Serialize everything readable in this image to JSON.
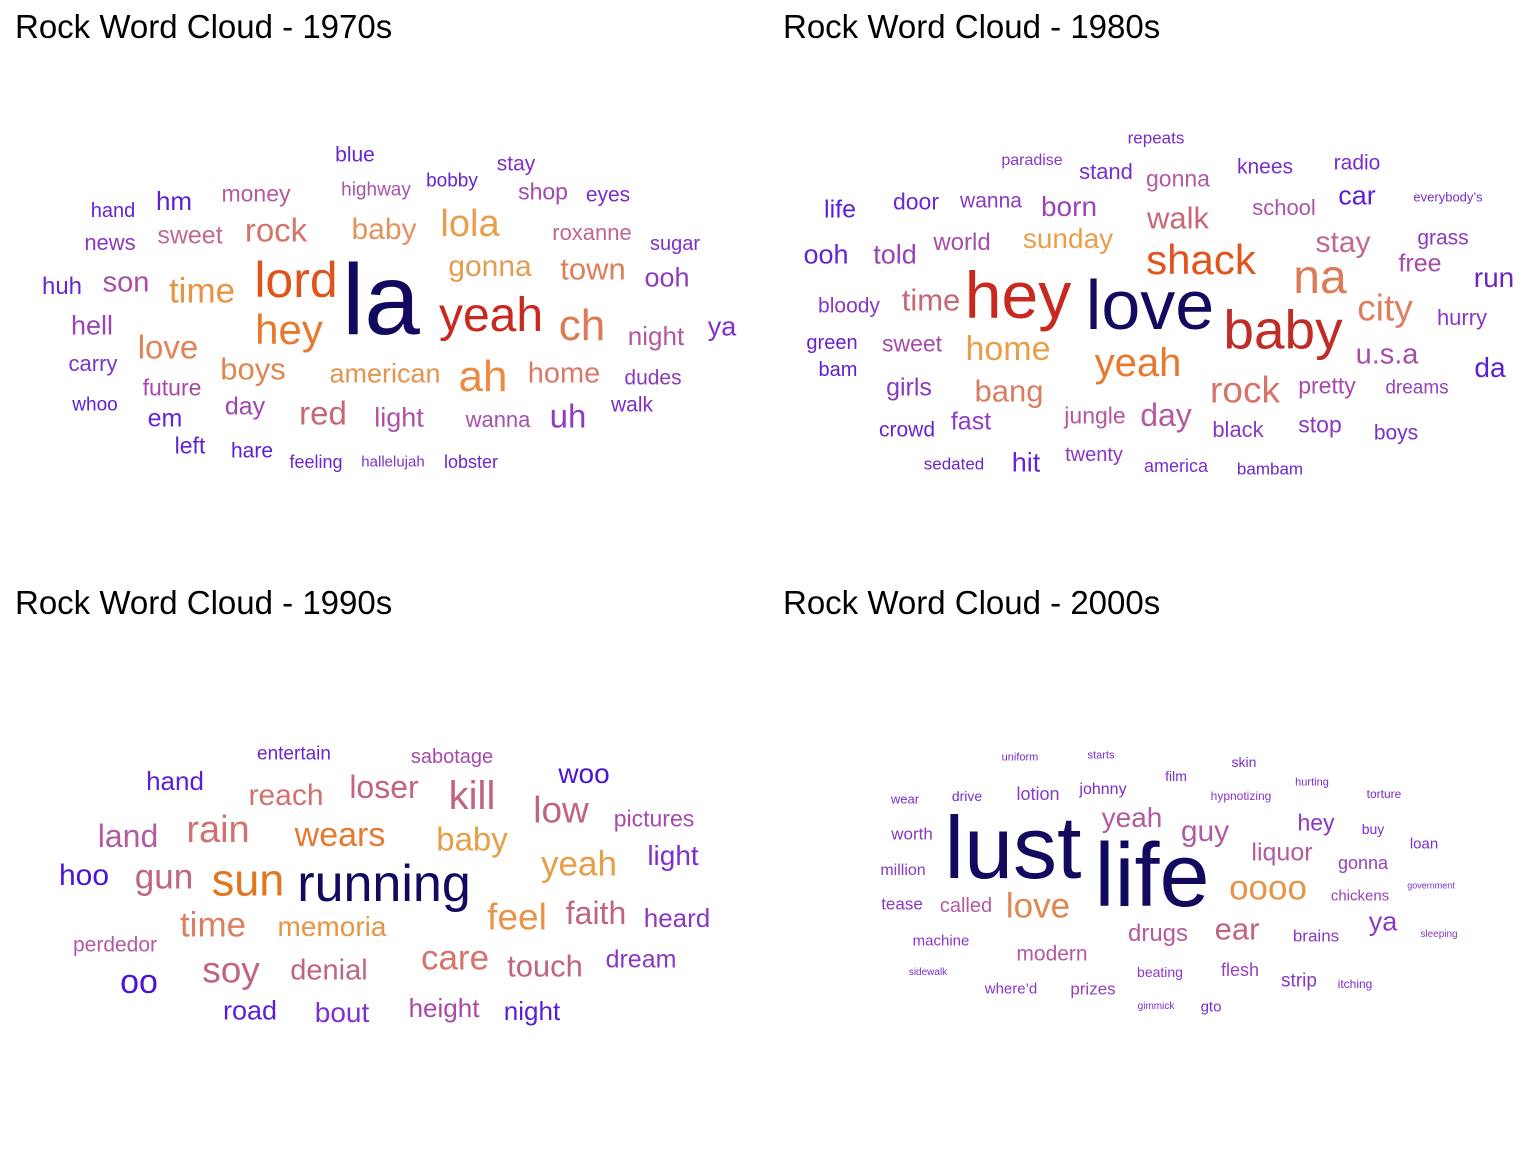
{
  "chart_data": [
    {
      "type": "wordcloud",
      "title": "Rock Word Cloud - 1970s",
      "words": [
        {
          "text": "la",
          "weight": 100,
          "color": "#120a5e"
        },
        {
          "text": "lord",
          "weight": 50,
          "color": "#e0541b"
        },
        {
          "text": "yeah",
          "weight": 48,
          "color": "#c9281e"
        },
        {
          "text": "ah",
          "weight": 44,
          "color": "#ec8a42"
        },
        {
          "text": "ch",
          "weight": 44,
          "color": "#dc7a55"
        },
        {
          "text": "hey",
          "weight": 42,
          "color": "#e57a2e"
        },
        {
          "text": "lola",
          "weight": 38,
          "color": "#e99e4b"
        },
        {
          "text": "time",
          "weight": 35,
          "color": "#ea9440"
        },
        {
          "text": "rock",
          "weight": 33,
          "color": "#d6746c"
        },
        {
          "text": "red",
          "weight": 33,
          "color": "#c86877"
        },
        {
          "text": "love",
          "weight": 33,
          "color": "#e08456"
        },
        {
          "text": "uh",
          "weight": 33,
          "color": "#8f3cc4"
        },
        {
          "text": "boys",
          "weight": 31,
          "color": "#e0864e"
        },
        {
          "text": "town",
          "weight": 31,
          "color": "#dc7f5a"
        },
        {
          "text": "gonna",
          "weight": 30,
          "color": "#e39d52"
        },
        {
          "text": "baby",
          "weight": 30,
          "color": "#e2925e"
        },
        {
          "text": "son",
          "weight": 29,
          "color": "#a94ea4"
        },
        {
          "text": "home",
          "weight": 29,
          "color": "#d77a67"
        },
        {
          "text": "american",
          "weight": 27,
          "color": "#e3944e"
        },
        {
          "text": "ya",
          "weight": 27,
          "color": "#7d2fd0"
        },
        {
          "text": "hell",
          "weight": 27,
          "color": "#9b45b5"
        },
        {
          "text": "ooh",
          "weight": 27,
          "color": "#8c3cbd"
        },
        {
          "text": "light",
          "weight": 27,
          "color": "#b14fa7"
        },
        {
          "text": "night",
          "weight": 26,
          "color": "#b655a0"
        },
        {
          "text": "hm",
          "weight": 26,
          "color": "#5a1ed6"
        },
        {
          "text": "sweet",
          "weight": 25,
          "color": "#c16892"
        },
        {
          "text": "em",
          "weight": 25,
          "color": "#6226d2"
        },
        {
          "text": "day",
          "weight": 25,
          "color": "#9e46b2"
        },
        {
          "text": "huh",
          "weight": 24,
          "color": "#6a26cc"
        },
        {
          "text": "shop",
          "weight": 23,
          "color": "#a447b0"
        },
        {
          "text": "future",
          "weight": 23,
          "color": "#a849aa"
        },
        {
          "text": "money",
          "weight": 23,
          "color": "#b35aa1"
        },
        {
          "text": "left",
          "weight": 23,
          "color": "#5e22d4"
        },
        {
          "text": "wanna",
          "weight": 22,
          "color": "#a850aa"
        },
        {
          "text": "news",
          "weight": 22,
          "color": "#8a38c2"
        },
        {
          "text": "roxanne",
          "weight": 22,
          "color": "#c2658f"
        },
        {
          "text": "carry",
          "weight": 22,
          "color": "#7b34c8"
        },
        {
          "text": "dudes",
          "weight": 21,
          "color": "#8a3ac0"
        },
        {
          "text": "walk",
          "weight": 21,
          "color": "#7a30c8"
        },
        {
          "text": "hare",
          "weight": 21,
          "color": "#5c1fd5"
        },
        {
          "text": "eyes",
          "weight": 21,
          "color": "#7a2dca"
        },
        {
          "text": "blue",
          "weight": 21,
          "color": "#6a27cf"
        },
        {
          "text": "stay",
          "weight": 21,
          "color": "#7d2fc8"
        },
        {
          "text": "hand",
          "weight": 20,
          "color": "#6524cf"
        },
        {
          "text": "sugar",
          "weight": 20,
          "color": "#7d31c6"
        },
        {
          "text": "whoo",
          "weight": 19,
          "color": "#5a1ed8"
        },
        {
          "text": "bobby",
          "weight": 19,
          "color": "#6524cf"
        },
        {
          "text": "highway",
          "weight": 19,
          "color": "#a954a7"
        },
        {
          "text": "feeling",
          "weight": 18,
          "color": "#6a28cc"
        },
        {
          "text": "lobster",
          "weight": 18,
          "color": "#6a27cd"
        },
        {
          "text": "hallelujah",
          "weight": 15,
          "color": "#7f34c5"
        }
      ]
    },
    {
      "type": "wordcloud",
      "title": "Rock Word Cloud - 1980s",
      "words": [
        {
          "text": "love",
          "weight": 70,
          "color": "#120a5e"
        },
        {
          "text": "hey",
          "weight": 66,
          "color": "#c9281e"
        },
        {
          "text": "baby",
          "weight": 55,
          "color": "#c02c28"
        },
        {
          "text": "na",
          "weight": 48,
          "color": "#dd7a58"
        },
        {
          "text": "shack",
          "weight": 42,
          "color": "#e0541b"
        },
        {
          "text": "yeah",
          "weight": 40,
          "color": "#e57a2e"
        },
        {
          "text": "rock",
          "weight": 37,
          "color": "#d6746c"
        },
        {
          "text": "city",
          "weight": 37,
          "color": "#dd7f5e"
        },
        {
          "text": "home",
          "weight": 34,
          "color": "#e99e4b"
        },
        {
          "text": "day",
          "weight": 32,
          "color": "#b65aa0"
        },
        {
          "text": "walk",
          "weight": 31,
          "color": "#c86877"
        },
        {
          "text": "bang",
          "weight": 31,
          "color": "#da7d62"
        },
        {
          "text": "time",
          "weight": 31,
          "color": "#c86877"
        },
        {
          "text": "stay",
          "weight": 30,
          "color": "#c16892"
        },
        {
          "text": "u.s.a",
          "weight": 29,
          "color": "#a54ea8"
        },
        {
          "text": "sunday",
          "weight": 28,
          "color": "#e99e4b"
        },
        {
          "text": "born",
          "weight": 28,
          "color": "#9d44b4"
        },
        {
          "text": "run",
          "weight": 28,
          "color": "#6a26cc"
        },
        {
          "text": "da",
          "weight": 28,
          "color": "#5a1ed6"
        },
        {
          "text": "ooh",
          "weight": 27,
          "color": "#6424cf"
        },
        {
          "text": "told",
          "weight": 27,
          "color": "#9641b6"
        },
        {
          "text": "car",
          "weight": 27,
          "color": "#5c1fd5"
        },
        {
          "text": "hit",
          "weight": 27,
          "color": "#6524cf"
        },
        {
          "text": "girls",
          "weight": 25,
          "color": "#8a38c2"
        },
        {
          "text": "life",
          "weight": 25,
          "color": "#5a1ed6"
        },
        {
          "text": "free",
          "weight": 25,
          "color": "#a849aa"
        },
        {
          "text": "fast",
          "weight": 25,
          "color": "#8f3cc4"
        },
        {
          "text": "world",
          "weight": 24,
          "color": "#a54ea8"
        },
        {
          "text": "door",
          "weight": 23,
          "color": "#6a27cf"
        },
        {
          "text": "pretty",
          "weight": 23,
          "color": "#a849aa"
        },
        {
          "text": "gonna",
          "weight": 23,
          "color": "#b35aa1"
        },
        {
          "text": "stop",
          "weight": 23,
          "color": "#8a38c2"
        },
        {
          "text": "jungle",
          "weight": 23,
          "color": "#b655a0"
        },
        {
          "text": "sweet",
          "weight": 23,
          "color": "#a849aa"
        },
        {
          "text": "school",
          "weight": 22,
          "color": "#a954a7"
        },
        {
          "text": "hurry",
          "weight": 22,
          "color": "#8a38c2"
        },
        {
          "text": "black",
          "weight": 22,
          "color": "#8a38c2"
        },
        {
          "text": "stand",
          "weight": 22,
          "color": "#7a2dca"
        },
        {
          "text": "boys",
          "weight": 21,
          "color": "#7a30c8"
        },
        {
          "text": "grass",
          "weight": 21,
          "color": "#8a38c2"
        },
        {
          "text": "radio",
          "weight": 21,
          "color": "#7a2dca"
        },
        {
          "text": "crowd",
          "weight": 21,
          "color": "#6524cf"
        },
        {
          "text": "bloody",
          "weight": 21,
          "color": "#8a38c2"
        },
        {
          "text": "wanna",
          "weight": 21,
          "color": "#8a38c2"
        },
        {
          "text": "knees",
          "weight": 21,
          "color": "#7a2dca"
        },
        {
          "text": "green",
          "weight": 20,
          "color": "#6524cf"
        },
        {
          "text": "bam",
          "weight": 20,
          "color": "#5a1ed6"
        },
        {
          "text": "twenty",
          "weight": 20,
          "color": "#8a38c2"
        },
        {
          "text": "dreams",
          "weight": 19,
          "color": "#9641b6"
        },
        {
          "text": "america",
          "weight": 18,
          "color": "#7a2dca"
        },
        {
          "text": "bambam",
          "weight": 17,
          "color": "#6a27cd"
        },
        {
          "text": "repeats",
          "weight": 17,
          "color": "#7a2dca"
        },
        {
          "text": "sedated",
          "weight": 17,
          "color": "#6a27cd"
        },
        {
          "text": "paradise",
          "weight": 16,
          "color": "#8a38c2"
        },
        {
          "text": "everybody’s",
          "weight": 13,
          "color": "#7a2dca"
        }
      ]
    },
    {
      "type": "wordcloud",
      "title": "Rock Word Cloud - 1990s",
      "words": [
        {
          "text": "running",
          "weight": 52,
          "color": "#120a5e"
        },
        {
          "text": "sun",
          "weight": 45,
          "color": "#e0761e"
        },
        {
          "text": "kill",
          "weight": 40,
          "color": "#c16480"
        },
        {
          "text": "rain",
          "weight": 38,
          "color": "#d07272"
        },
        {
          "text": "low",
          "weight": 37,
          "color": "#c16480"
        },
        {
          "text": "feel",
          "weight": 37,
          "color": "#e69447"
        },
        {
          "text": "soy",
          "weight": 37,
          "color": "#c16480"
        },
        {
          "text": "gun",
          "weight": 35,
          "color": "#c16480"
        },
        {
          "text": "care",
          "weight": 35,
          "color": "#d6746c"
        },
        {
          "text": "time",
          "weight": 35,
          "color": "#dd7f5e"
        },
        {
          "text": "yeah",
          "weight": 35,
          "color": "#e69f47"
        },
        {
          "text": "wears",
          "weight": 34,
          "color": "#e57a2e"
        },
        {
          "text": "oo",
          "weight": 34,
          "color": "#4a13d8"
        },
        {
          "text": "baby",
          "weight": 33,
          "color": "#e69f47"
        },
        {
          "text": "loser",
          "weight": 32,
          "color": "#c16480"
        },
        {
          "text": "land",
          "weight": 32,
          "color": "#b35aa1"
        },
        {
          "text": "faith",
          "weight": 32,
          "color": "#c16480"
        },
        {
          "text": "touch",
          "weight": 31,
          "color": "#c16480"
        },
        {
          "text": "reach",
          "weight": 30,
          "color": "#d07272"
        },
        {
          "text": "hoo",
          "weight": 30,
          "color": "#4a13d8"
        },
        {
          "text": "denial",
          "weight": 29,
          "color": "#c16480"
        },
        {
          "text": "memoria",
          "weight": 28,
          "color": "#e69447"
        },
        {
          "text": "woo",
          "weight": 28,
          "color": "#4a13d8"
        },
        {
          "text": "bout",
          "weight": 28,
          "color": "#7d2fd0"
        },
        {
          "text": "light",
          "weight": 28,
          "color": "#7d2fd0"
        },
        {
          "text": "road",
          "weight": 27,
          "color": "#5a1ed6"
        },
        {
          "text": "heard",
          "weight": 26,
          "color": "#8a38c2"
        },
        {
          "text": "hand",
          "weight": 26,
          "color": "#5a1ed6"
        },
        {
          "text": "night",
          "weight": 26,
          "color": "#5a1ed6"
        },
        {
          "text": "height",
          "weight": 26,
          "color": "#a849aa"
        },
        {
          "text": "dream",
          "weight": 25,
          "color": "#8a38c2"
        },
        {
          "text": "pictures",
          "weight": 23,
          "color": "#a849aa"
        },
        {
          "text": "perdedor",
          "weight": 21,
          "color": "#b35aa1"
        },
        {
          "text": "sabotage",
          "weight": 20,
          "color": "#a849aa"
        },
        {
          "text": "entertain",
          "weight": 19,
          "color": "#6a27cd"
        }
      ]
    },
    {
      "type": "wordcloud",
      "title": "Rock Word Cloud - 2000s",
      "words": [
        {
          "text": "life",
          "weight": 90,
          "color": "#120a5e"
        },
        {
          "text": "lust",
          "weight": 88,
          "color": "#120a5e"
        },
        {
          "text": "love",
          "weight": 35,
          "color": "#e0864e"
        },
        {
          "text": "oooo",
          "weight": 35,
          "color": "#e69447"
        },
        {
          "text": "ear",
          "weight": 31,
          "color": "#c16480"
        },
        {
          "text": "guy",
          "weight": 30,
          "color": "#b35aa1"
        },
        {
          "text": "yeah",
          "weight": 28,
          "color": "#b35aa1"
        },
        {
          "text": "ya",
          "weight": 27,
          "color": "#8a38c2"
        },
        {
          "text": "liquor",
          "weight": 25,
          "color": "#b35aa1"
        },
        {
          "text": "drugs",
          "weight": 24,
          "color": "#b35aa1"
        },
        {
          "text": "hey",
          "weight": 23,
          "color": "#8a38c2"
        },
        {
          "text": "modern",
          "weight": 21,
          "color": "#b35aa1"
        },
        {
          "text": "called",
          "weight": 20,
          "color": "#b35aa1"
        },
        {
          "text": "strip",
          "weight": 19,
          "color": "#8a38c2"
        },
        {
          "text": "gonna",
          "weight": 18,
          "color": "#9641b6"
        },
        {
          "text": "flesh",
          "weight": 18,
          "color": "#9641b6"
        },
        {
          "text": "lotion",
          "weight": 18,
          "color": "#8a38c2"
        },
        {
          "text": "prizes",
          "weight": 17,
          "color": "#9641b6"
        },
        {
          "text": "brains",
          "weight": 17,
          "color": "#8a38c2"
        },
        {
          "text": "worth",
          "weight": 17,
          "color": "#8a38c2"
        },
        {
          "text": "tease",
          "weight": 17,
          "color": "#8a38c2"
        },
        {
          "text": "johnny",
          "weight": 16,
          "color": "#7a2dca"
        },
        {
          "text": "million",
          "weight": 16,
          "color": "#8a38c2"
        },
        {
          "text": "chickens",
          "weight": 15,
          "color": "#9641b6"
        },
        {
          "text": "where’d",
          "weight": 15,
          "color": "#8a38c2"
        },
        {
          "text": "machine",
          "weight": 15,
          "color": "#8a38c2"
        },
        {
          "text": "gto",
          "weight": 15,
          "color": "#7a2dca"
        },
        {
          "text": "loan",
          "weight": 15,
          "color": "#7a2dca"
        },
        {
          "text": "film",
          "weight": 14,
          "color": "#7a2dca"
        },
        {
          "text": "beating",
          "weight": 14,
          "color": "#8a38c2"
        },
        {
          "text": "buy",
          "weight": 14,
          "color": "#7a2dca"
        },
        {
          "text": "drive",
          "weight": 14,
          "color": "#7a2dca"
        },
        {
          "text": "skin",
          "weight": 14,
          "color": "#7a2dca"
        },
        {
          "text": "wear",
          "weight": 13,
          "color": "#7a2dca"
        },
        {
          "text": "hypnotizing",
          "weight": 12,
          "color": "#8a38c2"
        },
        {
          "text": "torture",
          "weight": 12,
          "color": "#7a2dca"
        },
        {
          "text": "itching",
          "weight": 12,
          "color": "#7a2dca"
        },
        {
          "text": "hurting",
          "weight": 11,
          "color": "#7a2dca"
        },
        {
          "text": "starts",
          "weight": 11,
          "color": "#7a2dca"
        },
        {
          "text": "uniform",
          "weight": 11,
          "color": "#7a2dca"
        },
        {
          "text": "gimmick",
          "weight": 10,
          "color": "#7a2dca"
        },
        {
          "text": "sleeping",
          "weight": 10,
          "color": "#8a38c2"
        },
        {
          "text": "sidewalk",
          "weight": 10,
          "color": "#7a2dca"
        },
        {
          "text": "government",
          "weight": 9,
          "color": "#7a2dca"
        }
      ]
    }
  ]
}
